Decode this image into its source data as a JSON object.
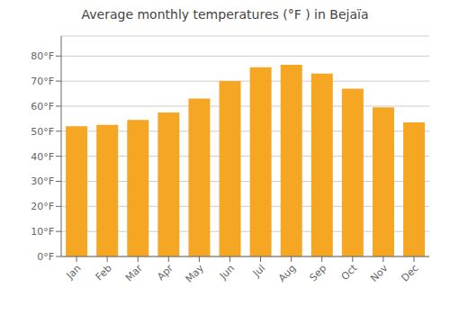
{
  "chart_data": {
    "type": "bar",
    "title": "Average monthly temperatures (°F ) in Bejaïа",
    "categories": [
      "Jan",
      "Feb",
      "Mar",
      "Apr",
      "May",
      "Jun",
      "Jul",
      "Aug",
      "Sep",
      "Oct",
      "Nov",
      "Dec"
    ],
    "values": [
      52,
      52.5,
      54.5,
      57.5,
      63,
      70,
      75.5,
      76.5,
      73,
      67,
      59.5,
      53.5
    ],
    "color": "#F5A623",
    "ylim": [
      0,
      88
    ],
    "yticks": [
      {
        "value": 0,
        "label": "0°F"
      },
      {
        "value": 10,
        "label": "10°F"
      },
      {
        "value": 20,
        "label": "20°F"
      },
      {
        "value": 30,
        "label": "30°F"
      },
      {
        "value": 40,
        "label": "40°F"
      },
      {
        "value": 50,
        "label": "50°F"
      },
      {
        "value": 60,
        "label": "60°F"
      },
      {
        "value": 70,
        "label": "70°F"
      },
      {
        "value": 80,
        "label": "80°F"
      }
    ],
    "grid": true
  }
}
